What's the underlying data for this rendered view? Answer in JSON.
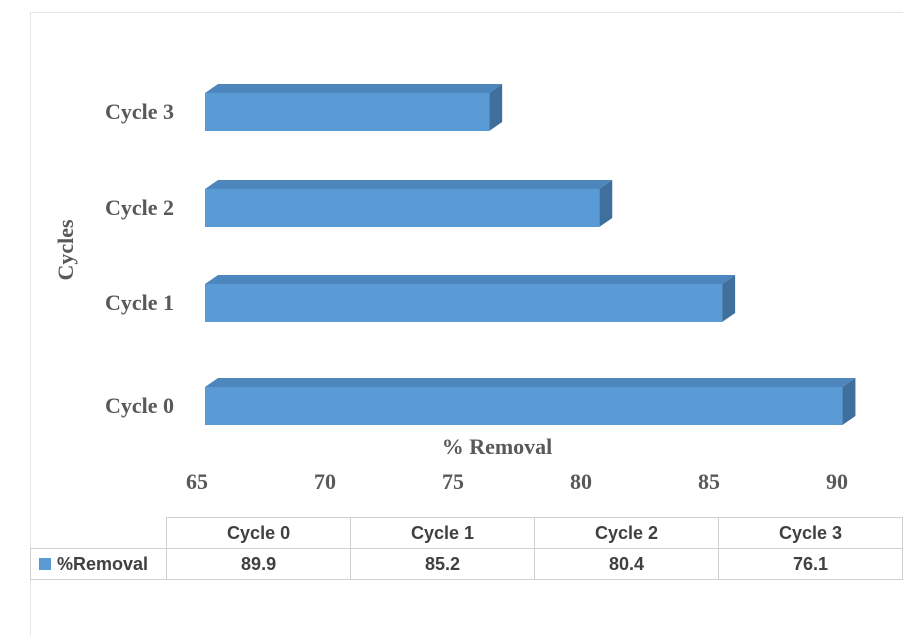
{
  "chart_data": {
    "type": "bar",
    "orientation": "horizontal",
    "style": "3d",
    "categories": [
      "Cycle 0",
      "Cycle 1",
      "Cycle 2",
      "Cycle 3"
    ],
    "series": [
      {
        "name": "%Removal",
        "values": [
          89.9,
          85.2,
          80.4,
          76.1
        ]
      }
    ],
    "xlabel": "% Removal",
    "ylabel": "Cycles",
    "xlim": [
      65,
      90
    ],
    "xticks": [
      65,
      70,
      75,
      80,
      85,
      90
    ],
    "grid": false,
    "data_table": true,
    "colors": {
      "bar": "#5b9bd5",
      "bar_top": "#4d86bd",
      "bar_side": "#3f6f9c"
    }
  }
}
